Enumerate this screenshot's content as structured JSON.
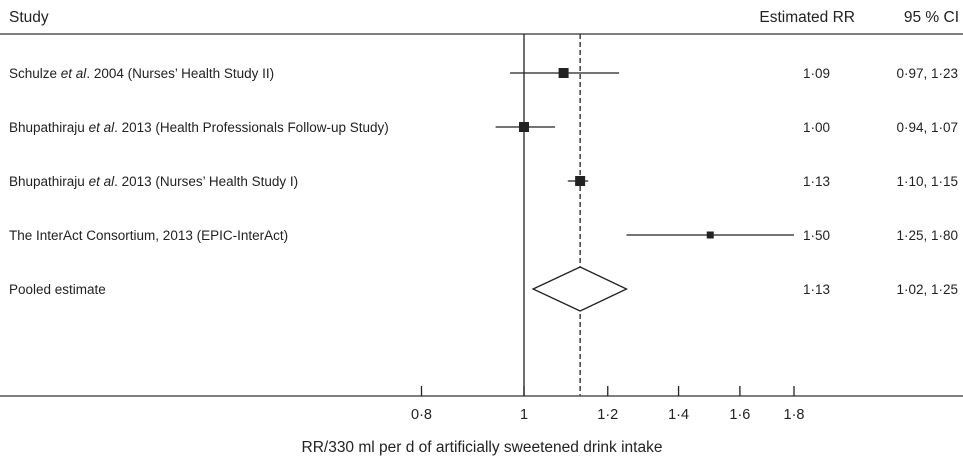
{
  "chart_data": {
    "type": "forest",
    "columns": {
      "study": "Study",
      "estimate": "Estimated RR",
      "ci": "95 % CI"
    },
    "studies": [
      {
        "label_parts": [
          "Schulze ",
          "et al",
          ". 2004 (Nurses’ Health Study II)"
        ],
        "rr": 1.09,
        "lower": 0.97,
        "upper": 1.23,
        "rr_text": "1·09",
        "ci_text": "0·97, 1·23"
      },
      {
        "label_parts": [
          "Bhupathiraju ",
          "et al",
          ". 2013 (Health Professionals Follow-up Study)"
        ],
        "rr": 1.0,
        "lower": 0.94,
        "upper": 1.07,
        "rr_text": "1·00",
        "ci_text": "0·94, 1·07"
      },
      {
        "label_parts": [
          "Bhupathiraju ",
          "et al",
          ". 2013 (Nurses’ Health Study I)"
        ],
        "rr": 1.13,
        "lower": 1.1,
        "upper": 1.15,
        "rr_text": "1·13",
        "ci_text": "1·10, 1·15"
      },
      {
        "label_parts": [
          "The InterAct Consortium, 2013 (EPIC-InterAct)",
          "",
          ""
        ],
        "rr": 1.5,
        "lower": 1.25,
        "upper": 1.8,
        "rr_text": "1·50",
        "ci_text": "1·25, 1·80"
      }
    ],
    "pooled": {
      "label": "Pooled estimate",
      "rr": 1.13,
      "lower": 1.02,
      "upper": 1.25,
      "rr_text": "1·13",
      "ci_text": "1·02, 1·25"
    },
    "x_scale": "log",
    "xticks": [
      0.8,
      1,
      1.2,
      1.4,
      1.6,
      1.8
    ],
    "xtick_labels": [
      "0·8",
      "1",
      "1·2",
      "1·4",
      "1·6",
      "1·8"
    ],
    "null_line": 1,
    "pooled_line": 1.13,
    "xlabel": "RR/330 ml per d of artificially sweetened drink intake",
    "colors": {
      "ink": "#222222",
      "rule": "#555555"
    }
  }
}
